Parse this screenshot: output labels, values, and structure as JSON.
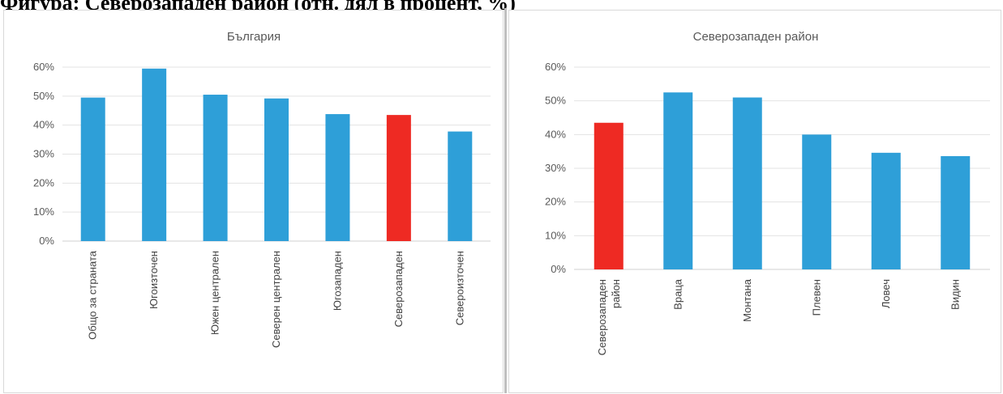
{
  "caption": "Фигура: Северозападен район (отн. дял в процент, %)",
  "colors": {
    "bar": "#2e9fd8",
    "highlight": "#ee2a23"
  },
  "chart_data": [
    {
      "type": "bar",
      "title": "България",
      "categories": [
        "Общо за страната",
        "Югоизточен",
        "Южен централен",
        "Северен централен",
        "Югозападен",
        "Северозападен",
        "Североизточен"
      ],
      "values": [
        49.5,
        59.5,
        50.5,
        49.2,
        43.8,
        43.5,
        37.8
      ],
      "highlight_index": 5,
      "ylim": [
        0,
        60
      ],
      "yticks": [
        "0%",
        "10%",
        "20%",
        "30%",
        "40%",
        "50%",
        "60%"
      ],
      "grid": true,
      "legend": "none"
    },
    {
      "type": "bar",
      "title": "Северозападен район",
      "categories": [
        "Северозападен район",
        "Враца",
        "Монтана",
        "Плевен",
        "Ловеч",
        "Видин"
      ],
      "values": [
        43.5,
        52.5,
        51.0,
        40.0,
        34.6,
        33.6
      ],
      "highlight_index": 0,
      "ylim": [
        0,
        60
      ],
      "yticks": [
        "0%",
        "10%",
        "20%",
        "30%",
        "40%",
        "50%",
        "60%"
      ],
      "grid": true,
      "legend": "none"
    }
  ]
}
